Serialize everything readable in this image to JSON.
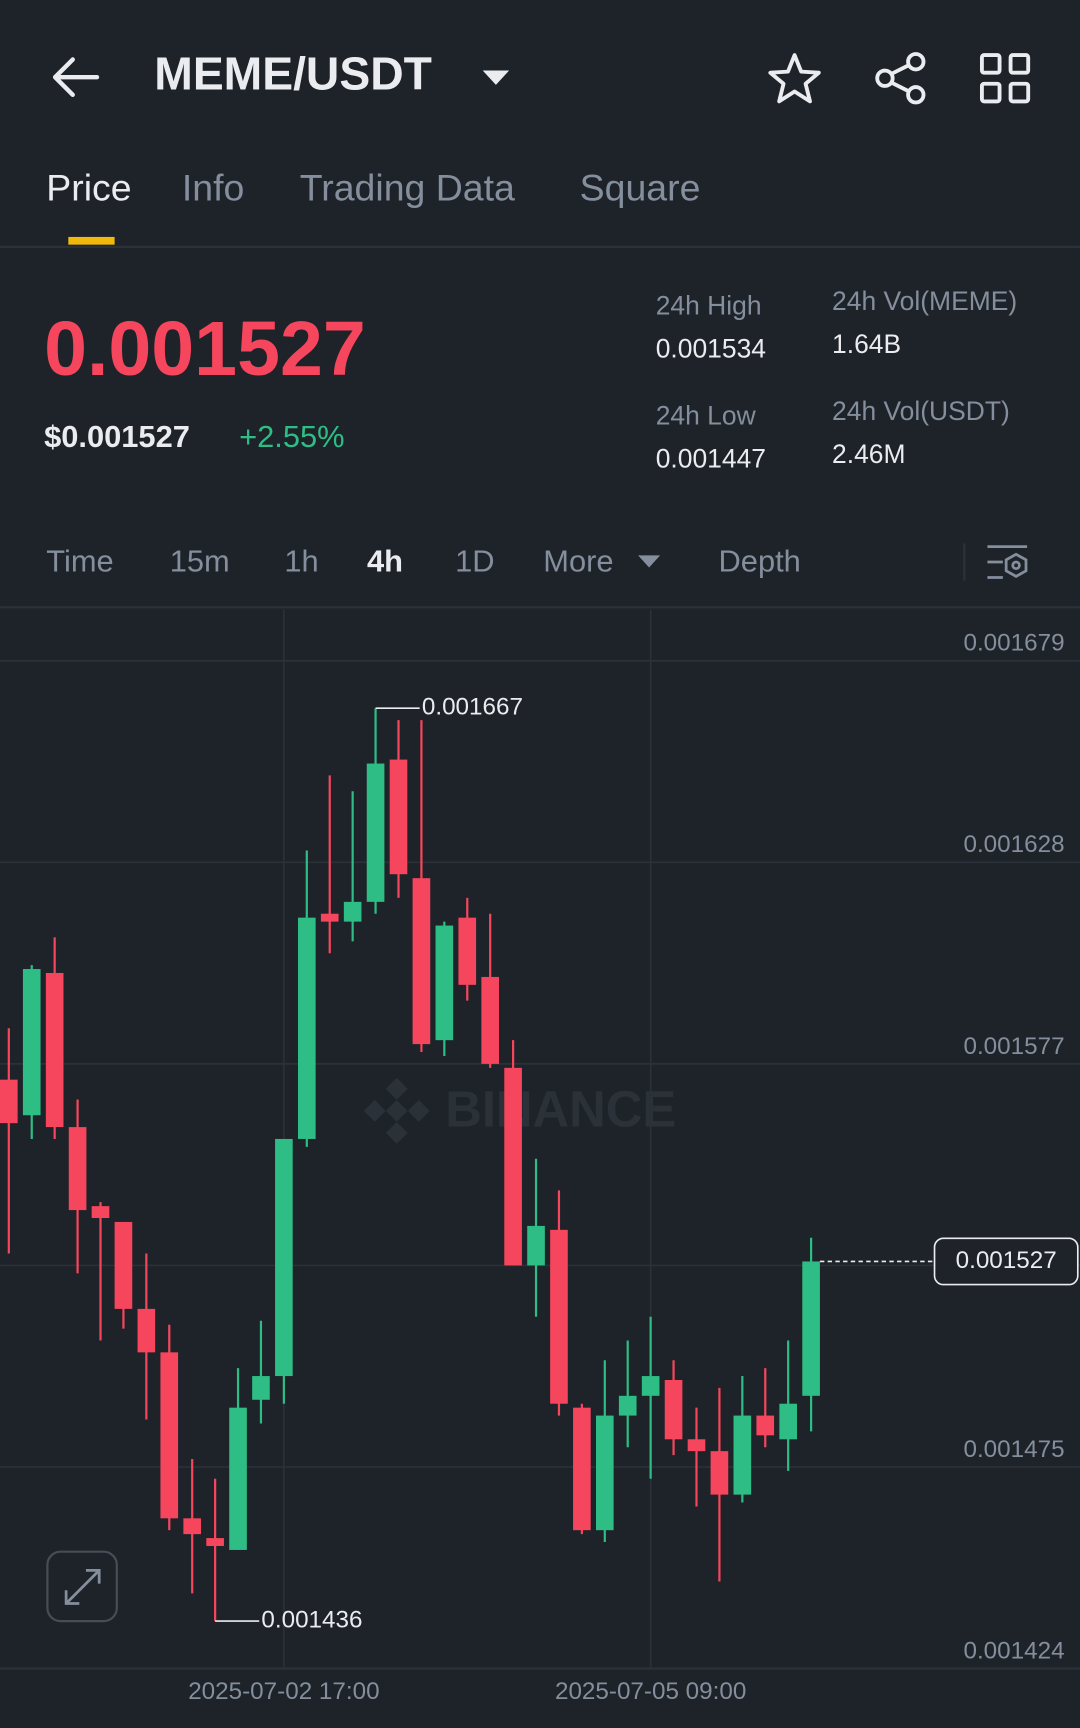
{
  "header": {
    "title": "MEME/USDT"
  },
  "tabs": [
    "Price",
    "Info",
    "Trading Data",
    "Square"
  ],
  "active_tab": 0,
  "price": {
    "last": "0.001527",
    "usd": "$0.001527",
    "change": "+2.55%"
  },
  "stats": [
    {
      "label": "24h High",
      "value": "0.001534"
    },
    {
      "label": "24h Vol(MEME)",
      "value": "1.64B"
    },
    {
      "label": "24h Low",
      "value": "0.001447"
    },
    {
      "label": "24h Vol(USDT)",
      "value": "2.46M"
    }
  ],
  "intervals": [
    "Time",
    "15m",
    "1h",
    "4h",
    "1D",
    "More",
    "Depth"
  ],
  "active_interval": 3,
  "chart_data": {
    "type": "candlestick",
    "watermark": "BINANCE",
    "x": [
      null,
      null,
      null,
      null,
      null,
      null,
      null,
      null,
      null,
      null,
      null,
      null,
      "2025-07-02 17:00",
      null,
      null,
      null,
      null,
      null,
      null,
      null,
      null,
      null,
      null,
      null,
      null,
      null,
      null,
      null,
      "2025-07-05 09:00",
      null,
      null,
      null,
      null,
      null,
      null,
      null
    ],
    "open": [
      0.001573,
      0.001564,
      0.0016,
      0.001561,
      0.001541,
      0.001537,
      0.001515,
      0.001504,
      0.001462,
      0.001457,
      0.001454,
      0.001492,
      0.001498,
      0.001558,
      0.001615,
      0.001613,
      0.001618,
      0.001654,
      0.001624,
      0.001583,
      0.001614,
      0.001599,
      0.001576,
      0.001526,
      0.001535,
      0.00149,
      0.001459,
      0.001488,
      0.001493,
      0.001497,
      0.001482,
      0.001479,
      0.001468,
      0.001488,
      0.001482,
      0.001493
    ],
    "high": [
      0.001586,
      0.001602,
      0.001609,
      0.001568,
      0.001542,
      0.001537,
      0.001529,
      0.001511,
      0.001477,
      0.001472,
      0.0015,
      0.001512,
      0.001558,
      0.001631,
      0.00165,
      0.001646,
      0.001667,
      0.001664,
      0.001664,
      0.001613,
      0.001619,
      0.001615,
      0.001583,
      0.001553,
      0.001545,
      0.001491,
      0.001502,
      0.001507,
      0.001513,
      0.001502,
      0.00149,
      0.001495,
      0.001498,
      0.0015,
      0.001507,
      0.001533
    ],
    "low": [
      0.001529,
      0.001558,
      0.001558,
      0.001524,
      0.001507,
      0.00151,
      0.001487,
      0.001459,
      0.001443,
      0.001436,
      0.001454,
      0.001486,
      0.001491,
      0.001556,
      0.001605,
      0.001608,
      0.001615,
      0.001619,
      0.00158,
      0.001579,
      0.001593,
      0.001576,
      0.001526,
      0.001513,
      0.001488,
      0.001458,
      0.001456,
      0.00148,
      0.001472,
      0.001478,
      0.001465,
      0.001446,
      0.001466,
      0.00148,
      0.001474,
      0.001484
    ],
    "close": [
      0.001562,
      0.001601,
      0.001561,
      0.00154,
      0.001538,
      0.001515,
      0.001504,
      0.001462,
      0.001458,
      0.001455,
      0.00149,
      0.001498,
      0.001558,
      0.001614,
      0.001613,
      0.001618,
      0.001653,
      0.001625,
      0.001582,
      0.001612,
      0.001597,
      0.001577,
      0.001526,
      0.001536,
      0.001491,
      0.001459,
      0.001488,
      0.001493,
      0.001498,
      0.001482,
      0.001479,
      0.001468,
      0.001488,
      0.001483,
      0.001491,
      0.001527
    ],
    "up_color": "#2ebd85",
    "down_color": "#f6465d",
    "ylim": [
      0.001424,
      0.001692
    ],
    "yticks": [
      0.001424,
      0.001475,
      0.001526,
      0.001577,
      0.001628,
      0.001679
    ],
    "grid": true
  }
}
